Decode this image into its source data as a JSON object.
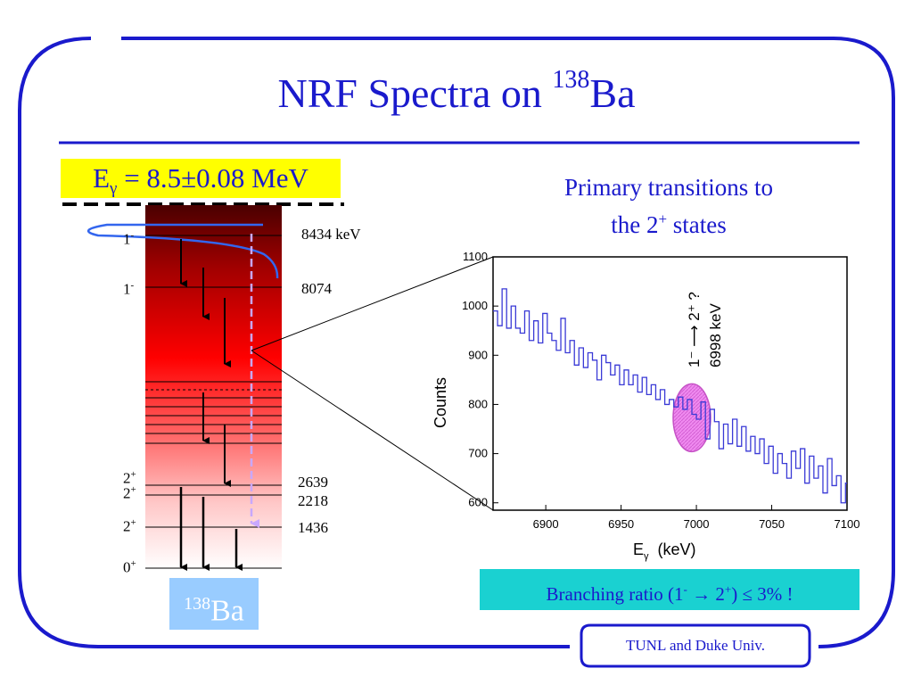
{
  "title": {
    "prefix": "NRF Spectra on ",
    "mass": "138",
    "element": "Ba"
  },
  "beam": {
    "label": "E",
    "sub": "γ",
    "value": " = 8.5±0.08 MeV"
  },
  "primary": {
    "line1": "Primary transitions to",
    "line2_pre": "the 2",
    "line2_sup": "+",
    "line2_post": " states"
  },
  "levels_left": [
    {
      "spin": "1",
      "parity": "-"
    },
    {
      "spin": "1",
      "parity": "-"
    },
    {
      "spin": "2",
      "parity": "+"
    },
    {
      "spin": "2",
      "parity": "+"
    },
    {
      "spin": "2",
      "parity": "+"
    },
    {
      "spin": "0",
      "parity": "+"
    }
  ],
  "levels_right": [
    "8434 keV",
    "8074",
    "2639",
    "2218",
    "1436"
  ],
  "nucleus": {
    "mass": "138",
    "element": "Ba"
  },
  "branching": {
    "text": "Branching ratio (1",
    "sup1": "-",
    "arrow": " → 2",
    "sup2": "+",
    "post": ")  ≤ 3% !"
  },
  "footer": "TUNL and Duke Univ.",
  "annotation": {
    "transition": "1⁻ ⟶ 2⁺ ?",
    "energy": "6998 keV"
  },
  "chart_data": {
    "type": "line",
    "title": "",
    "xlabel": "E",
    "xlabel_sub": "γ",
    "xlabel_unit": "(keV)",
    "ylabel": "Counts",
    "xlim": [
      6865,
      7100
    ],
    "ylim": [
      585,
      1100
    ],
    "xticks": [
      6900,
      6950,
      7000,
      7050,
      7100
    ],
    "yticks": [
      600,
      700,
      800,
      900,
      1000,
      1100
    ],
    "series": [
      {
        "color": "#3a3ad6",
        "step": true,
        "x": [
          6865,
          6868,
          6871,
          6874,
          6877,
          6880,
          6883,
          6886,
          6889,
          6892,
          6895,
          6898,
          6901,
          6904,
          6907,
          6910,
          6913,
          6916,
          6919,
          6922,
          6925,
          6928,
          6931,
          6934,
          6937,
          6940,
          6943,
          6946,
          6949,
          6952,
          6955,
          6958,
          6961,
          6964,
          6967,
          6970,
          6973,
          6976,
          6979,
          6982,
          6985,
          6988,
          6991,
          6994,
          6997,
          7000,
          7003,
          7006,
          7009,
          7012,
          7015,
          7018,
          7021,
          7024,
          7027,
          7030,
          7033,
          7036,
          7039,
          7042,
          7045,
          7048,
          7051,
          7054,
          7057,
          7060,
          7063,
          7066,
          7069,
          7072,
          7075,
          7078,
          7081,
          7084,
          7087,
          7090,
          7093,
          7096,
          7099
        ],
        "y": [
          990,
          960,
          1035,
          955,
          1000,
          955,
          945,
          990,
          930,
          970,
          925,
          985,
          945,
          930,
          910,
          975,
          905,
          930,
          880,
          915,
          875,
          905,
          890,
          850,
          900,
          885,
          860,
          880,
          840,
          870,
          840,
          860,
          825,
          855,
          820,
          840,
          810,
          830,
          800,
          810,
          795,
          815,
          790,
          810,
          780,
          770,
          805,
          730,
          790,
          765,
          710,
          760,
          720,
          770,
          715,
          755,
          705,
          735,
          700,
          730,
          680,
          715,
          660,
          700,
          680,
          650,
          705,
          670,
          710,
          640,
          695,
          650,
          675,
          620,
          690,
          635,
          655,
          600,
          640
        ]
      }
    ],
    "highlight": {
      "x": 6997,
      "y": 773
    }
  }
}
